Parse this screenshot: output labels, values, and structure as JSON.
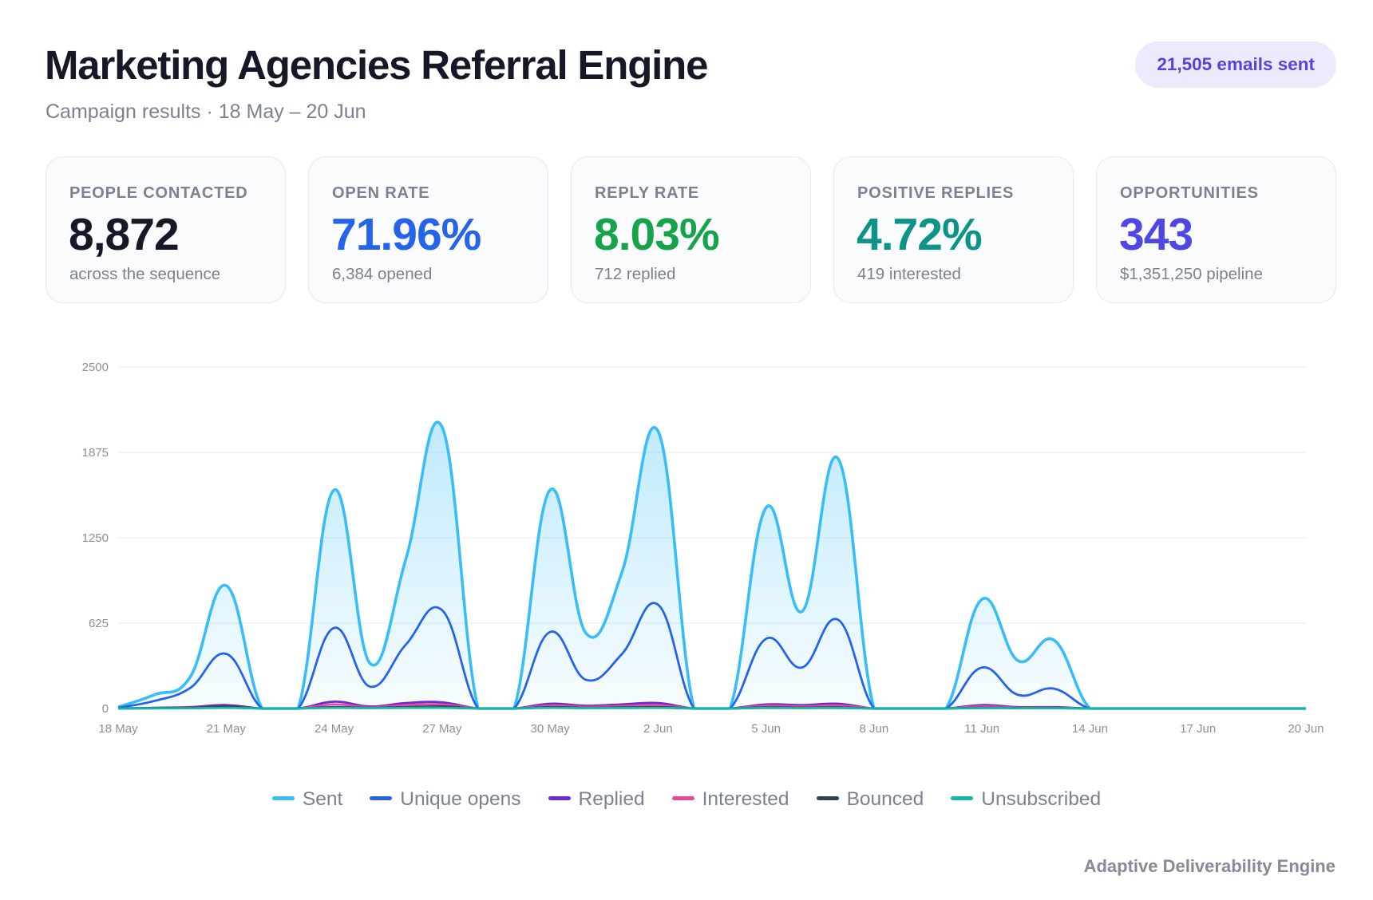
{
  "header": {
    "title": "Marketing Agencies Referral Engine",
    "subtitle": "Campaign results · 18 May – 20 Jun",
    "badge": "21,505 emails sent"
  },
  "cards": [
    {
      "label": "People contacted",
      "value": "8,872",
      "sub": "across the sequence",
      "color": "#151826"
    },
    {
      "label": "Open rate",
      "value": "71.96%",
      "sub": "6,384 opened",
      "color": "#2563eb"
    },
    {
      "label": "Reply rate",
      "value": "8.03%",
      "sub": "712 replied",
      "color": "#16a34a"
    },
    {
      "label": "Positive replies",
      "value": "4.72%",
      "sub": "419 interested",
      "color": "#0d9488"
    },
    {
      "label": "Opportunities",
      "value": "343",
      "sub": "$1,351,250 pipeline",
      "color": "#4f46e5"
    }
  ],
  "chart_data": {
    "type": "area",
    "title": "",
    "xlabel": "",
    "ylabel": "",
    "ylim": [
      0,
      2500
    ],
    "yticks": [
      0,
      625,
      1250,
      1875,
      2500
    ],
    "grid": true,
    "legend": "bottom",
    "x": [
      "18 May",
      "19 May",
      "20 May",
      "21 May",
      "22 May",
      "23 May",
      "24 May",
      "25 May",
      "26 May",
      "27 May",
      "28 May",
      "29 May",
      "30 May",
      "31 May",
      "1 Jun",
      "2 Jun",
      "3 Jun",
      "4 Jun",
      "5 Jun",
      "6 Jun",
      "7 Jun",
      "8 Jun",
      "9 Jun",
      "10 Jun",
      "11 Jun",
      "12 Jun",
      "13 Jun",
      "14 Jun",
      "15 Jun",
      "16 Jun",
      "17 Jun",
      "18 Jun",
      "19 Jun",
      "20 Jun"
    ],
    "xtick_labels": [
      "18 May",
      "21 May",
      "24 May",
      "27 May",
      "30 May",
      "2 Jun",
      "5 Jun",
      "8 Jun",
      "11 Jun",
      "14 Jun",
      "17 Jun",
      "20 Jun"
    ],
    "series": [
      {
        "name": "Sent",
        "color": "#38bdf8",
        "fill": true,
        "values": [
          10,
          100,
          230,
          900,
          0,
          0,
          1600,
          330,
          1100,
          2060,
          0,
          0,
          1600,
          550,
          1000,
          2030,
          0,
          0,
          1470,
          710,
          1830,
          0,
          0,
          0,
          800,
          350,
          500,
          0,
          0,
          0,
          0,
          0,
          0,
          0
        ]
      },
      {
        "name": "Unique opens",
        "color": "#2563eb",
        "values": [
          5,
          55,
          150,
          400,
          0,
          0,
          590,
          160,
          470,
          720,
          0,
          0,
          560,
          210,
          400,
          760,
          0,
          0,
          510,
          300,
          650,
          0,
          0,
          0,
          300,
          100,
          145,
          0,
          0,
          0,
          0,
          0,
          0,
          0
        ]
      },
      {
        "name": "Replied",
        "color": "#6d28d9",
        "values": [
          0,
          5,
          10,
          25,
          0,
          0,
          50,
          15,
          40,
          45,
          0,
          0,
          35,
          20,
          30,
          40,
          0,
          0,
          30,
          25,
          35,
          0,
          0,
          0,
          25,
          10,
          10,
          0,
          0,
          0,
          0,
          0,
          0,
          0
        ]
      },
      {
        "name": "Interested",
        "color": "#ec4899",
        "values": [
          0,
          3,
          6,
          15,
          0,
          0,
          30,
          10,
          25,
          30,
          0,
          0,
          22,
          12,
          18,
          25,
          0,
          0,
          20,
          15,
          22,
          0,
          0,
          0,
          15,
          6,
          6,
          0,
          0,
          0,
          0,
          0,
          0,
          0
        ]
      },
      {
        "name": "Bounced",
        "color": "#334155",
        "values": [
          0,
          3,
          5,
          15,
          0,
          0,
          10,
          5,
          10,
          15,
          0,
          0,
          10,
          5,
          8,
          10,
          0,
          0,
          8,
          6,
          8,
          0,
          0,
          0,
          5,
          3,
          3,
          0,
          0,
          0,
          0,
          0,
          0,
          0
        ]
      },
      {
        "name": "Unsubscribed",
        "color": "#14b8a6",
        "values": [
          0,
          1,
          2,
          5,
          0,
          0,
          5,
          3,
          5,
          5,
          0,
          0,
          5,
          3,
          4,
          5,
          0,
          0,
          4,
          3,
          4,
          0,
          0,
          0,
          3,
          2,
          2,
          0,
          0,
          0,
          0,
          0,
          0,
          0
        ]
      }
    ]
  },
  "footer": "Adaptive Deliverability Engine"
}
